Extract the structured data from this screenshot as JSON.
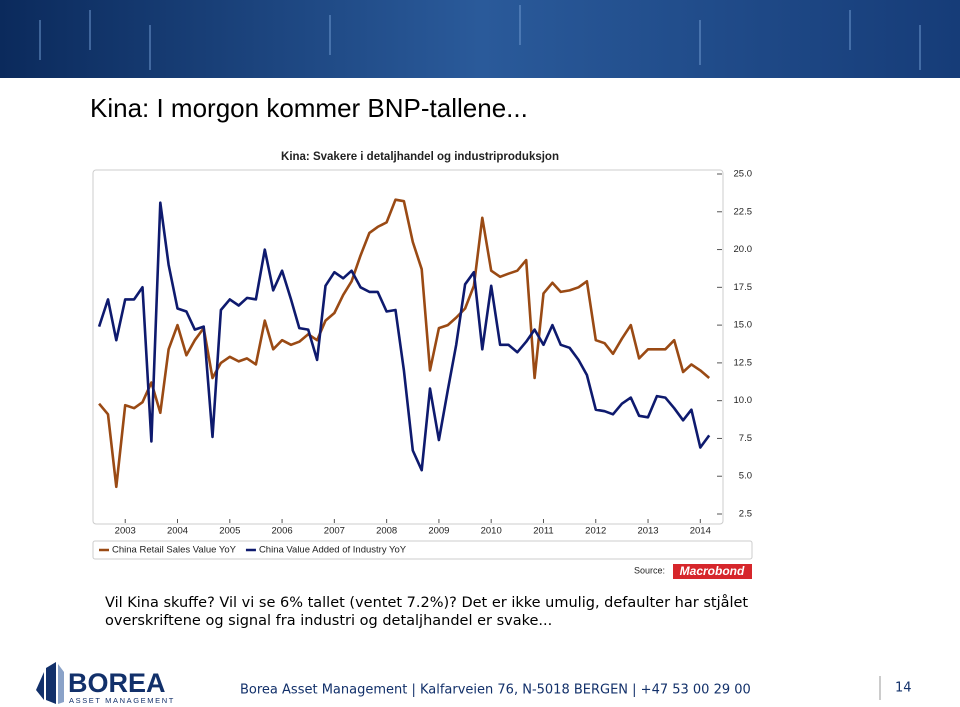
{
  "slide": {
    "title": "Kina: I morgon kommer BNP-tallene...",
    "body": [
      "Vil Kina skuffe? Vil vi se 6% tallet (ventet 7.2%)? Det er ikke umulig, defaulter har stjålet",
      "overskriftene og signal fra industri og detaljhandel er svake..."
    ],
    "logo": {
      "name": "BOREA",
      "tagline": "ASSET MANAGEMENT"
    },
    "footer": "Borea Asset Management | Kalfarveien 76, N-5018 BERGEN | +47 53 00 29 00",
    "page_number": "14"
  },
  "chart_data": {
    "type": "line",
    "title": "Kina: Svakere i detaljhandel og industriproduksjon",
    "source_label": "Source:",
    "source": "Macrobond",
    "x": [
      2003.0,
      2003.17,
      2003.33,
      2003.5,
      2003.67,
      2003.83,
      2004.0,
      2004.17,
      2004.33,
      2004.5,
      2004.67,
      2004.83,
      2005.0,
      2005.17,
      2005.33,
      2005.5,
      2005.67,
      2005.83,
      2006.0,
      2006.17,
      2006.33,
      2006.5,
      2006.67,
      2006.83,
      2007.0,
      2007.17,
      2007.33,
      2007.5,
      2007.67,
      2007.83,
      2008.0,
      2008.17,
      2008.33,
      2008.5,
      2008.67,
      2008.83,
      2009.0,
      2009.17,
      2009.33,
      2009.5,
      2009.67,
      2009.83,
      2010.0,
      2010.17,
      2010.33,
      2010.5,
      2010.67,
      2010.83,
      2011.0,
      2011.17,
      2011.33,
      2011.5,
      2011.67,
      2011.83,
      2012.0,
      2012.17,
      2012.33,
      2012.5,
      2012.67,
      2012.83,
      2013.0,
      2013.17,
      2013.33,
      2013.5,
      2013.67,
      2013.83,
      2014.0,
      2014.17,
      2014.33,
      2014.5,
      2014.67
    ],
    "series": [
      {
        "name": "China Retail Sales Value YoY",
        "color": "#9a4a14",
        "values": [
          9.8,
          9.1,
          4.3,
          9.7,
          9.5,
          9.9,
          11.2,
          9.2,
          13.4,
          15.0,
          13.0,
          14.0,
          14.8,
          11.5,
          12.5,
          12.9,
          12.6,
          12.8,
          12.4,
          15.3,
          13.4,
          14.0,
          13.7,
          13.9,
          14.4,
          14.0,
          15.3,
          15.8,
          17.0,
          17.9,
          19.6,
          21.1,
          21.5,
          21.8,
          23.3,
          23.2,
          20.5,
          18.7,
          12.0,
          14.8,
          15.0,
          15.5,
          16.1,
          17.6,
          22.1,
          18.6,
          18.2,
          18.4,
          18.6,
          19.3,
          11.5,
          17.1,
          17.8,
          17.2,
          17.3,
          17.5,
          17.9,
          14.0,
          13.8,
          13.1,
          14.1,
          15.0,
          12.8,
          13.4,
          13.4,
          13.4,
          14.0,
          11.9,
          12.4,
          12.0,
          11.5
        ]
      },
      {
        "name": "China Value Added of Industry YoY",
        "color": "#0e1a6e",
        "values": [
          14.9,
          16.7,
          14.0,
          16.7,
          16.7,
          17.5,
          7.3,
          23.1,
          19.0,
          16.1,
          15.9,
          14.7,
          14.9,
          7.6,
          16.0,
          16.7,
          16.3,
          16.8,
          16.7,
          20.0,
          17.3,
          18.6,
          16.7,
          14.8,
          14.7,
          12.7,
          17.6,
          18.5,
          18.1,
          18.6,
          17.5,
          17.2,
          17.2,
          15.9,
          16.0,
          12.0,
          6.7,
          5.4,
          10.8,
          7.4,
          10.7,
          13.7,
          17.7,
          18.5,
          13.4,
          17.6,
          13.7,
          13.7,
          13.2,
          13.9,
          14.7,
          13.7,
          15.0,
          13.7,
          13.5,
          12.7,
          11.7,
          9.4,
          9.3,
          9.1,
          9.8,
          10.2,
          9.0,
          8.9,
          10.3,
          10.2,
          9.5,
          8.7,
          9.4,
          6.9,
          7.7
        ]
      }
    ],
    "xlim": [
      2002.96,
      2014.8
    ],
    "xticks": [
      {
        "value": 2003.5,
        "label": "2003"
      },
      {
        "value": 2004.5,
        "label": "2004"
      },
      {
        "value": 2005.5,
        "label": "2005"
      },
      {
        "value": 2006.5,
        "label": "2006"
      },
      {
        "value": 2007.5,
        "label": "2007"
      },
      {
        "value": 2008.5,
        "label": "2008"
      },
      {
        "value": 2009.5,
        "label": "2009"
      },
      {
        "value": 2010.5,
        "label": "2010"
      },
      {
        "value": 2011.5,
        "label": "2011"
      },
      {
        "value": 2012.5,
        "label": "2012"
      },
      {
        "value": 2013.5,
        "label": "2013"
      },
      {
        "value": 2014.5,
        "label": "2014"
      }
    ],
    "ylim": [
      2.5,
      25
    ],
    "yticks": [
      {
        "value": 25,
        "label": "25.0"
      },
      {
        "value": 22.5,
        "label": "22.5"
      },
      {
        "value": 20,
        "label": "20.0"
      },
      {
        "value": 17.5,
        "label": "17.5"
      },
      {
        "value": 15,
        "label": "15.0"
      },
      {
        "value": 12.5,
        "label": "12.5"
      },
      {
        "value": 10,
        "label": "10.0"
      },
      {
        "value": 7.5,
        "label": "7.5"
      },
      {
        "value": 5,
        "label": "5.0"
      },
      {
        "value": 2.5,
        "label": "2.5"
      }
    ],
    "grid": false,
    "y_axis_side": "right",
    "legend": "bottom"
  }
}
